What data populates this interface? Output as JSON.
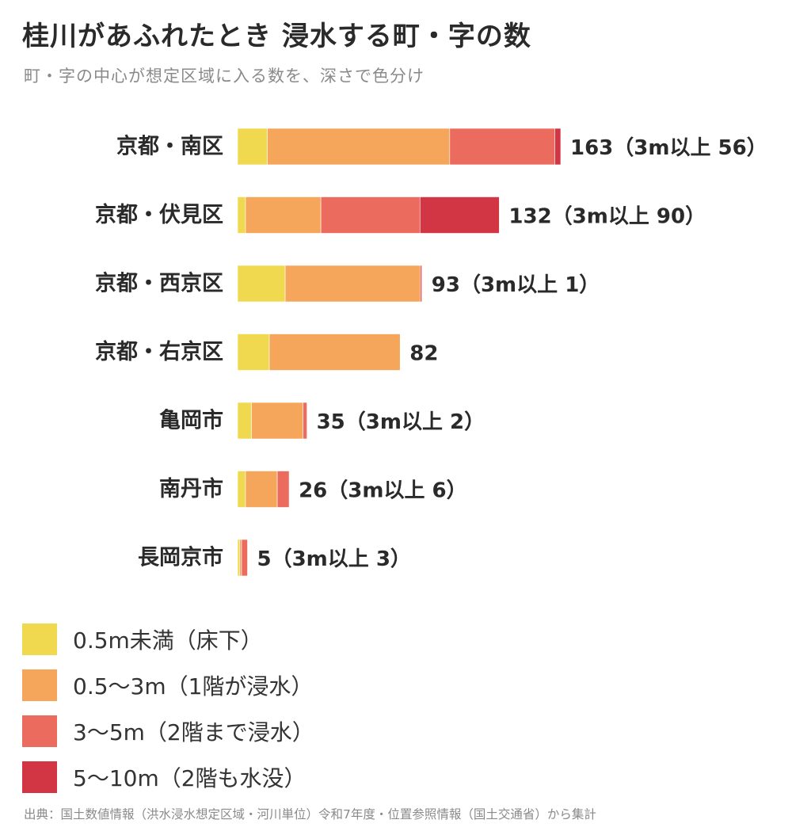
{
  "title": "桂川があふれたとき 浸水する町・字の数",
  "subtitle": "町・字の中心が想定区域に入る数を、深さで色分け",
  "source": "出典：国土数値情報（洪水浸水想定区域・河川単位）令和7年度・位置参照情報（国土交通省）から集計",
  "chart_data": {
    "type": "bar",
    "orientation": "horizontal",
    "stacked": true,
    "categories": [
      "京都・南区",
      "京都・伏見区",
      "京都・西京区",
      "京都・右京区",
      "亀岡市",
      "南丹市",
      "長岡京市"
    ],
    "series": [
      {
        "name": "0.5m未満（床下）",
        "color": "#f0d94e",
        "values": [
          15,
          4,
          24,
          16,
          7,
          4,
          1
        ]
      },
      {
        "name": "0.5〜3m（1階が浸水）",
        "color": "#f5a65b",
        "values": [
          92,
          38,
          68,
          66,
          26,
          16,
          1
        ]
      },
      {
        "name": "3〜5m（2階まで浸水）",
        "color": "#ec6b5f",
        "values": [
          53,
          50,
          1,
          0,
          2,
          6,
          3
        ]
      },
      {
        "name": "5〜10m（2階も水没）",
        "color": "#d23644",
        "values": [
          3,
          40,
          0,
          0,
          0,
          0,
          0
        ]
      }
    ],
    "totals": [
      163,
      132,
      93,
      82,
      35,
      26,
      5
    ],
    "value_labels": [
      "163（3m以上 56）",
      "132（3m以上 90）",
      "93（3m以上 1）",
      "82",
      "35（3m以上 2）",
      "26（3m以上 6）",
      "5（3m以上 3）"
    ],
    "xlim": [
      0,
      163
    ],
    "grid": false,
    "legend_position": "bottom-left"
  }
}
